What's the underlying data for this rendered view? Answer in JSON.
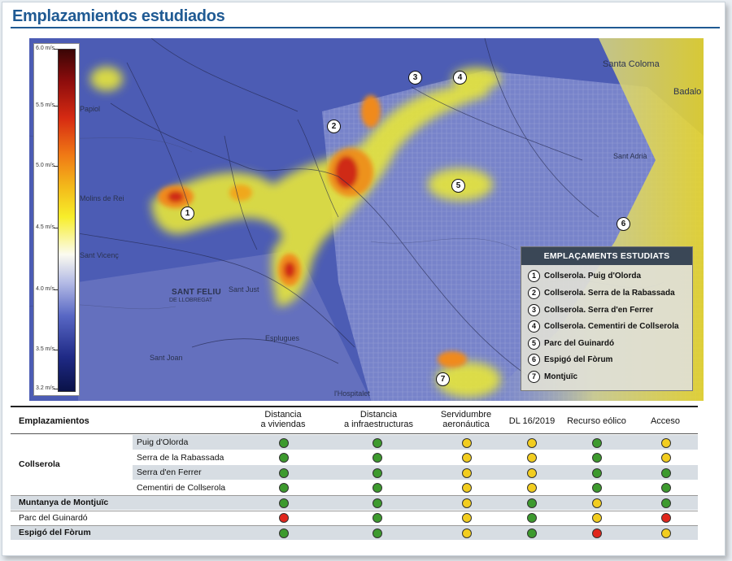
{
  "title": "Emplazamientos estudiados",
  "scale": {
    "ticks": [
      "6.0 m/s",
      "5.5 m/s",
      "5.0 m/s",
      "4.5 m/s",
      "4.0 m/s",
      "3.5 m/s",
      "3.2 m/s"
    ]
  },
  "map_labels": {
    "santa_coloma": "Santa Coloma",
    "badalona": "Badalo",
    "sant_adria": "Sant Adrià",
    "sant_feliu": "SANT FELIU",
    "llobregat": "DE LLOBREGAT",
    "sant_just": "Sant Just",
    "molins": "Molins de Rei",
    "papiol": "Papiol",
    "sant_vicenc": "Sant Vicenç",
    "esplugues": "Esplugues",
    "sant_joan": "Sant Joan",
    "hospitalet": "l'Hospitalet"
  },
  "legend": {
    "heading": "EMPLAÇAMENTS ESTUDIATS",
    "items": [
      {
        "num": "1",
        "label": "Collserola. Puig d'Olorda"
      },
      {
        "num": "2",
        "label": "Collserola. Serra de la Rabassada"
      },
      {
        "num": "3",
        "label": "Collserola. Serra d'en Ferrer"
      },
      {
        "num": "4",
        "label": "Collserola. Cementiri de Collserola"
      },
      {
        "num": "5",
        "label": "Parc del Guinardó"
      },
      {
        "num": "6",
        "label": "Espigó del Fòrum"
      },
      {
        "num": "7",
        "label": "Montjuïc"
      }
    ]
  },
  "table": {
    "headers": {
      "emplazamientos": "Emplazamientos",
      "dist_viv_1": "Distancia",
      "dist_viv_2": "a viviendas",
      "dist_inf_1": "Distancia",
      "dist_inf_2": "a infraestructuras",
      "serv_1": "Servidumbre",
      "serv_2": "aeronáutica",
      "dl": "DL 16/2019",
      "recurso": "Recurso eólico",
      "acceso": "Acceso"
    },
    "group": "Collserola",
    "rows": [
      {
        "main": "",
        "sub": "Puig d'Olorda",
        "status": [
          "green",
          "green",
          "yellow",
          "yellow",
          "green",
          "yellow"
        ]
      },
      {
        "main": "",
        "sub": "Serra de la Rabassada",
        "status": [
          "green",
          "green",
          "yellow",
          "yellow",
          "green",
          "yellow"
        ]
      },
      {
        "main": "",
        "sub": "Serra d'en Ferrer",
        "status": [
          "green",
          "green",
          "yellow",
          "yellow",
          "green",
          "green"
        ]
      },
      {
        "main": "",
        "sub": "Cementiri de Collserola",
        "status": [
          "green",
          "green",
          "yellow",
          "yellow",
          "green",
          "green"
        ]
      },
      {
        "main": "Muntanya de Montjuïc",
        "sub": "",
        "status": [
          "green",
          "green",
          "yellow",
          "green",
          "yellow",
          "green"
        ]
      },
      {
        "main": "Parc del Guinardó",
        "sub": "",
        "status": [
          "red",
          "green",
          "yellow",
          "green",
          "yellow",
          "red"
        ]
      },
      {
        "main": "Espigó del Fòrum",
        "sub": "",
        "status": [
          "green",
          "green",
          "yellow",
          "green",
          "red",
          "yellow"
        ]
      }
    ]
  },
  "colors": {
    "green": "#3d9a2e",
    "yellow": "#f2cd1f",
    "red": "#e0261c",
    "title": "#1f5a93"
  }
}
